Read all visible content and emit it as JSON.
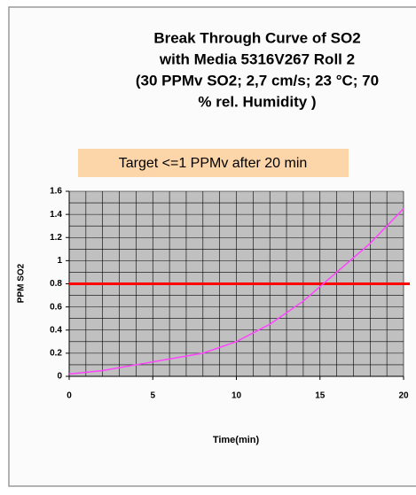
{
  "chart_data": {
    "type": "line",
    "title_lines": [
      "Break Through Curve of SO2",
      "with Media  5316V267 Roll 2",
      "(30 PPMv SO2; 2,7 cm/s; 23 °C; 70",
      "% rel. Humidity )"
    ],
    "annotation": "Target <=1 PPMv after 20 min",
    "x_label": "Time(min)",
    "y_label": "PPM SO2",
    "x": [
      0,
      2,
      4,
      6,
      8,
      10,
      12,
      14,
      16,
      18,
      20
    ],
    "series": [
      {
        "name": "SO2",
        "color": "#ff44ff",
        "values": [
          0.02,
          0.05,
          0.1,
          0.15,
          0.2,
          0.3,
          0.45,
          0.65,
          0.9,
          1.15,
          1.45
        ]
      }
    ],
    "reference_line": {
      "value": 0.8,
      "color": "#ff0000"
    },
    "xlim": [
      0,
      20
    ],
    "ylim": [
      0,
      1.6
    ],
    "xticks": [
      0,
      5,
      10,
      15,
      20
    ],
    "yticks": [
      0,
      0.2,
      0.4,
      0.6,
      0.8,
      1,
      1.2,
      1.4,
      1.6
    ],
    "grid_x_step": 1,
    "grid_y_step": 0.1,
    "grid": true
  }
}
